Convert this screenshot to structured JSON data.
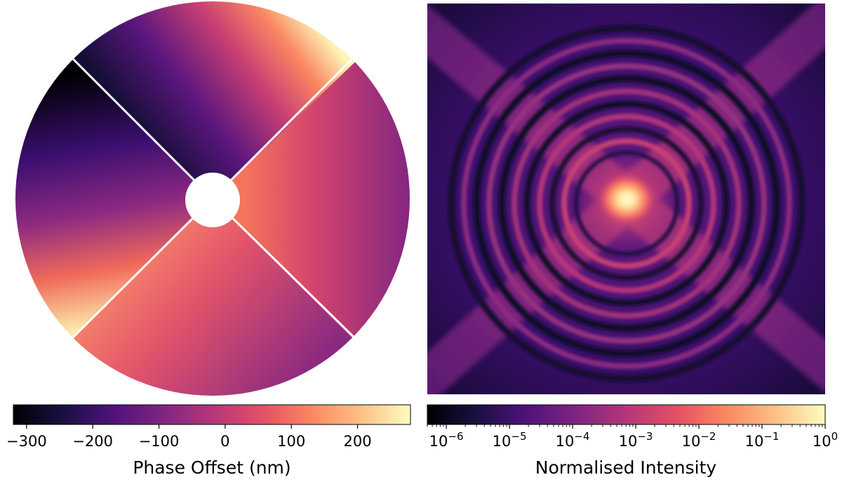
{
  "chart_data": [
    {
      "type": "heatmap",
      "title": "",
      "description_of_field": "pupil phase map: circular aperture with central obstruction and four spider-separated segments, each carrying a linear phase ramp",
      "colormap": "magma",
      "colorbar": {
        "label": "Phase Offset (nm)",
        "range": [
          -320,
          280
        ],
        "ticks": [
          -300,
          -200,
          -100,
          0,
          100,
          200
        ],
        "tick_labels": [
          "−300",
          "−200",
          "−100",
          "0",
          "100",
          "200"
        ]
      },
      "segments": [
        {
          "name": "top",
          "phase_range_nm": [
            -260,
            280
          ]
        },
        {
          "name": "right",
          "phase_range_nm": [
            -80,
            90
          ]
        },
        {
          "name": "bottom",
          "phase_range_nm": [
            -140,
            160
          ]
        },
        {
          "name": "left",
          "phase_range_nm": [
            -320,
            280
          ]
        }
      ]
    },
    {
      "type": "heatmap",
      "title": "",
      "description_of_field": "point spread function intensity on a log colour scale: bright central core, concentric rings and diagonal diffraction spikes",
      "colormap": "magma",
      "scale": "log",
      "colorbar": {
        "label": "Normalised Intensity",
        "range": [
          5e-07,
          1
        ],
        "ticks": [
          1e-06,
          1e-05,
          0.0001,
          0.001,
          0.01,
          0.1,
          1
        ],
        "tick_labels": [
          {
            "base": "10",
            "exp": "−6"
          },
          {
            "base": "10",
            "exp": "−5"
          },
          {
            "base": "10",
            "exp": "−4"
          },
          {
            "base": "10",
            "exp": "−3"
          },
          {
            "base": "10",
            "exp": "−2"
          },
          {
            "base": "10",
            "exp": "−1"
          },
          {
            "base": "10",
            "exp": "0"
          }
        ]
      }
    }
  ]
}
